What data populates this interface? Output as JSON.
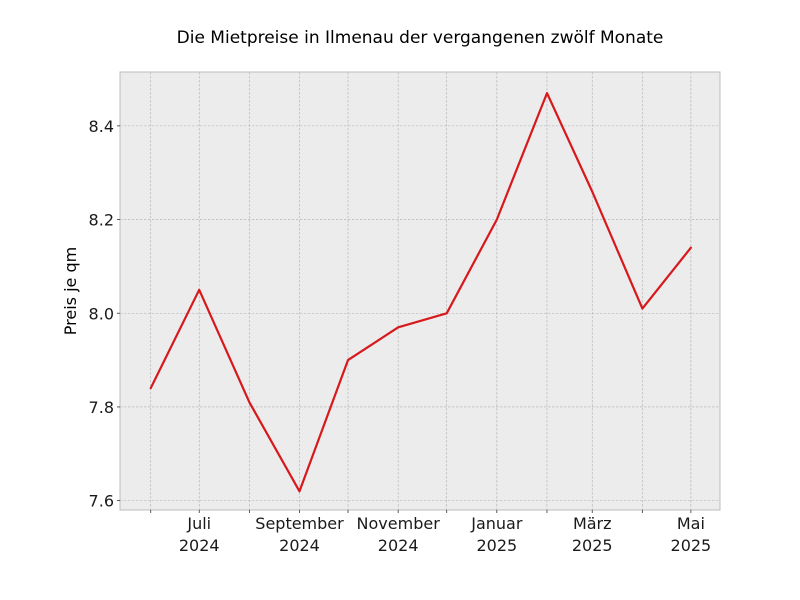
{
  "chart_data": {
    "type": "line",
    "title": "Die Mietpreise in Ilmenau der vergangenen zwölf Monate",
    "xlabel": "",
    "ylabel": "Preis je qm",
    "x": [
      "2024-06",
      "2024-07",
      "2024-08",
      "2024-09",
      "2024-10",
      "2024-11",
      "2024-12",
      "2025-01",
      "2025-02",
      "2025-03",
      "2025-04",
      "2025-05"
    ],
    "series": [
      {
        "values": [
          7.84,
          8.05,
          7.81,
          7.62,
          7.9,
          7.97,
          8.0,
          8.2,
          8.47,
          8.26,
          8.01,
          8.14
        ]
      }
    ],
    "x_tick_labels": [
      {
        "month": "2024-07",
        "line1": "Juli",
        "line2": "2024"
      },
      {
        "month": "2024-09",
        "line1": "September",
        "line2": "2024"
      },
      {
        "month": "2024-11",
        "line1": "November",
        "line2": "2024"
      },
      {
        "month": "2025-01",
        "line1": "Januar",
        "line2": "2025"
      },
      {
        "month": "2025-03",
        "line1": "März",
        "line2": "2025"
      },
      {
        "month": "2025-05",
        "line1": "Mai",
        "line2": "2025"
      }
    ],
    "y_ticks": [
      "7.6",
      "7.8",
      "8.0",
      "8.2",
      "8.4"
    ],
    "ylim": [
      7.58,
      8.515
    ],
    "xlim": [
      "2024-05-13",
      "2025-05-19"
    ],
    "grid": true,
    "legend": "none",
    "colors": {
      "line": "#d7191c",
      "plot_background": "#ececec",
      "grid": "#b0b0b0",
      "frame": "#bcbcbc"
    }
  }
}
